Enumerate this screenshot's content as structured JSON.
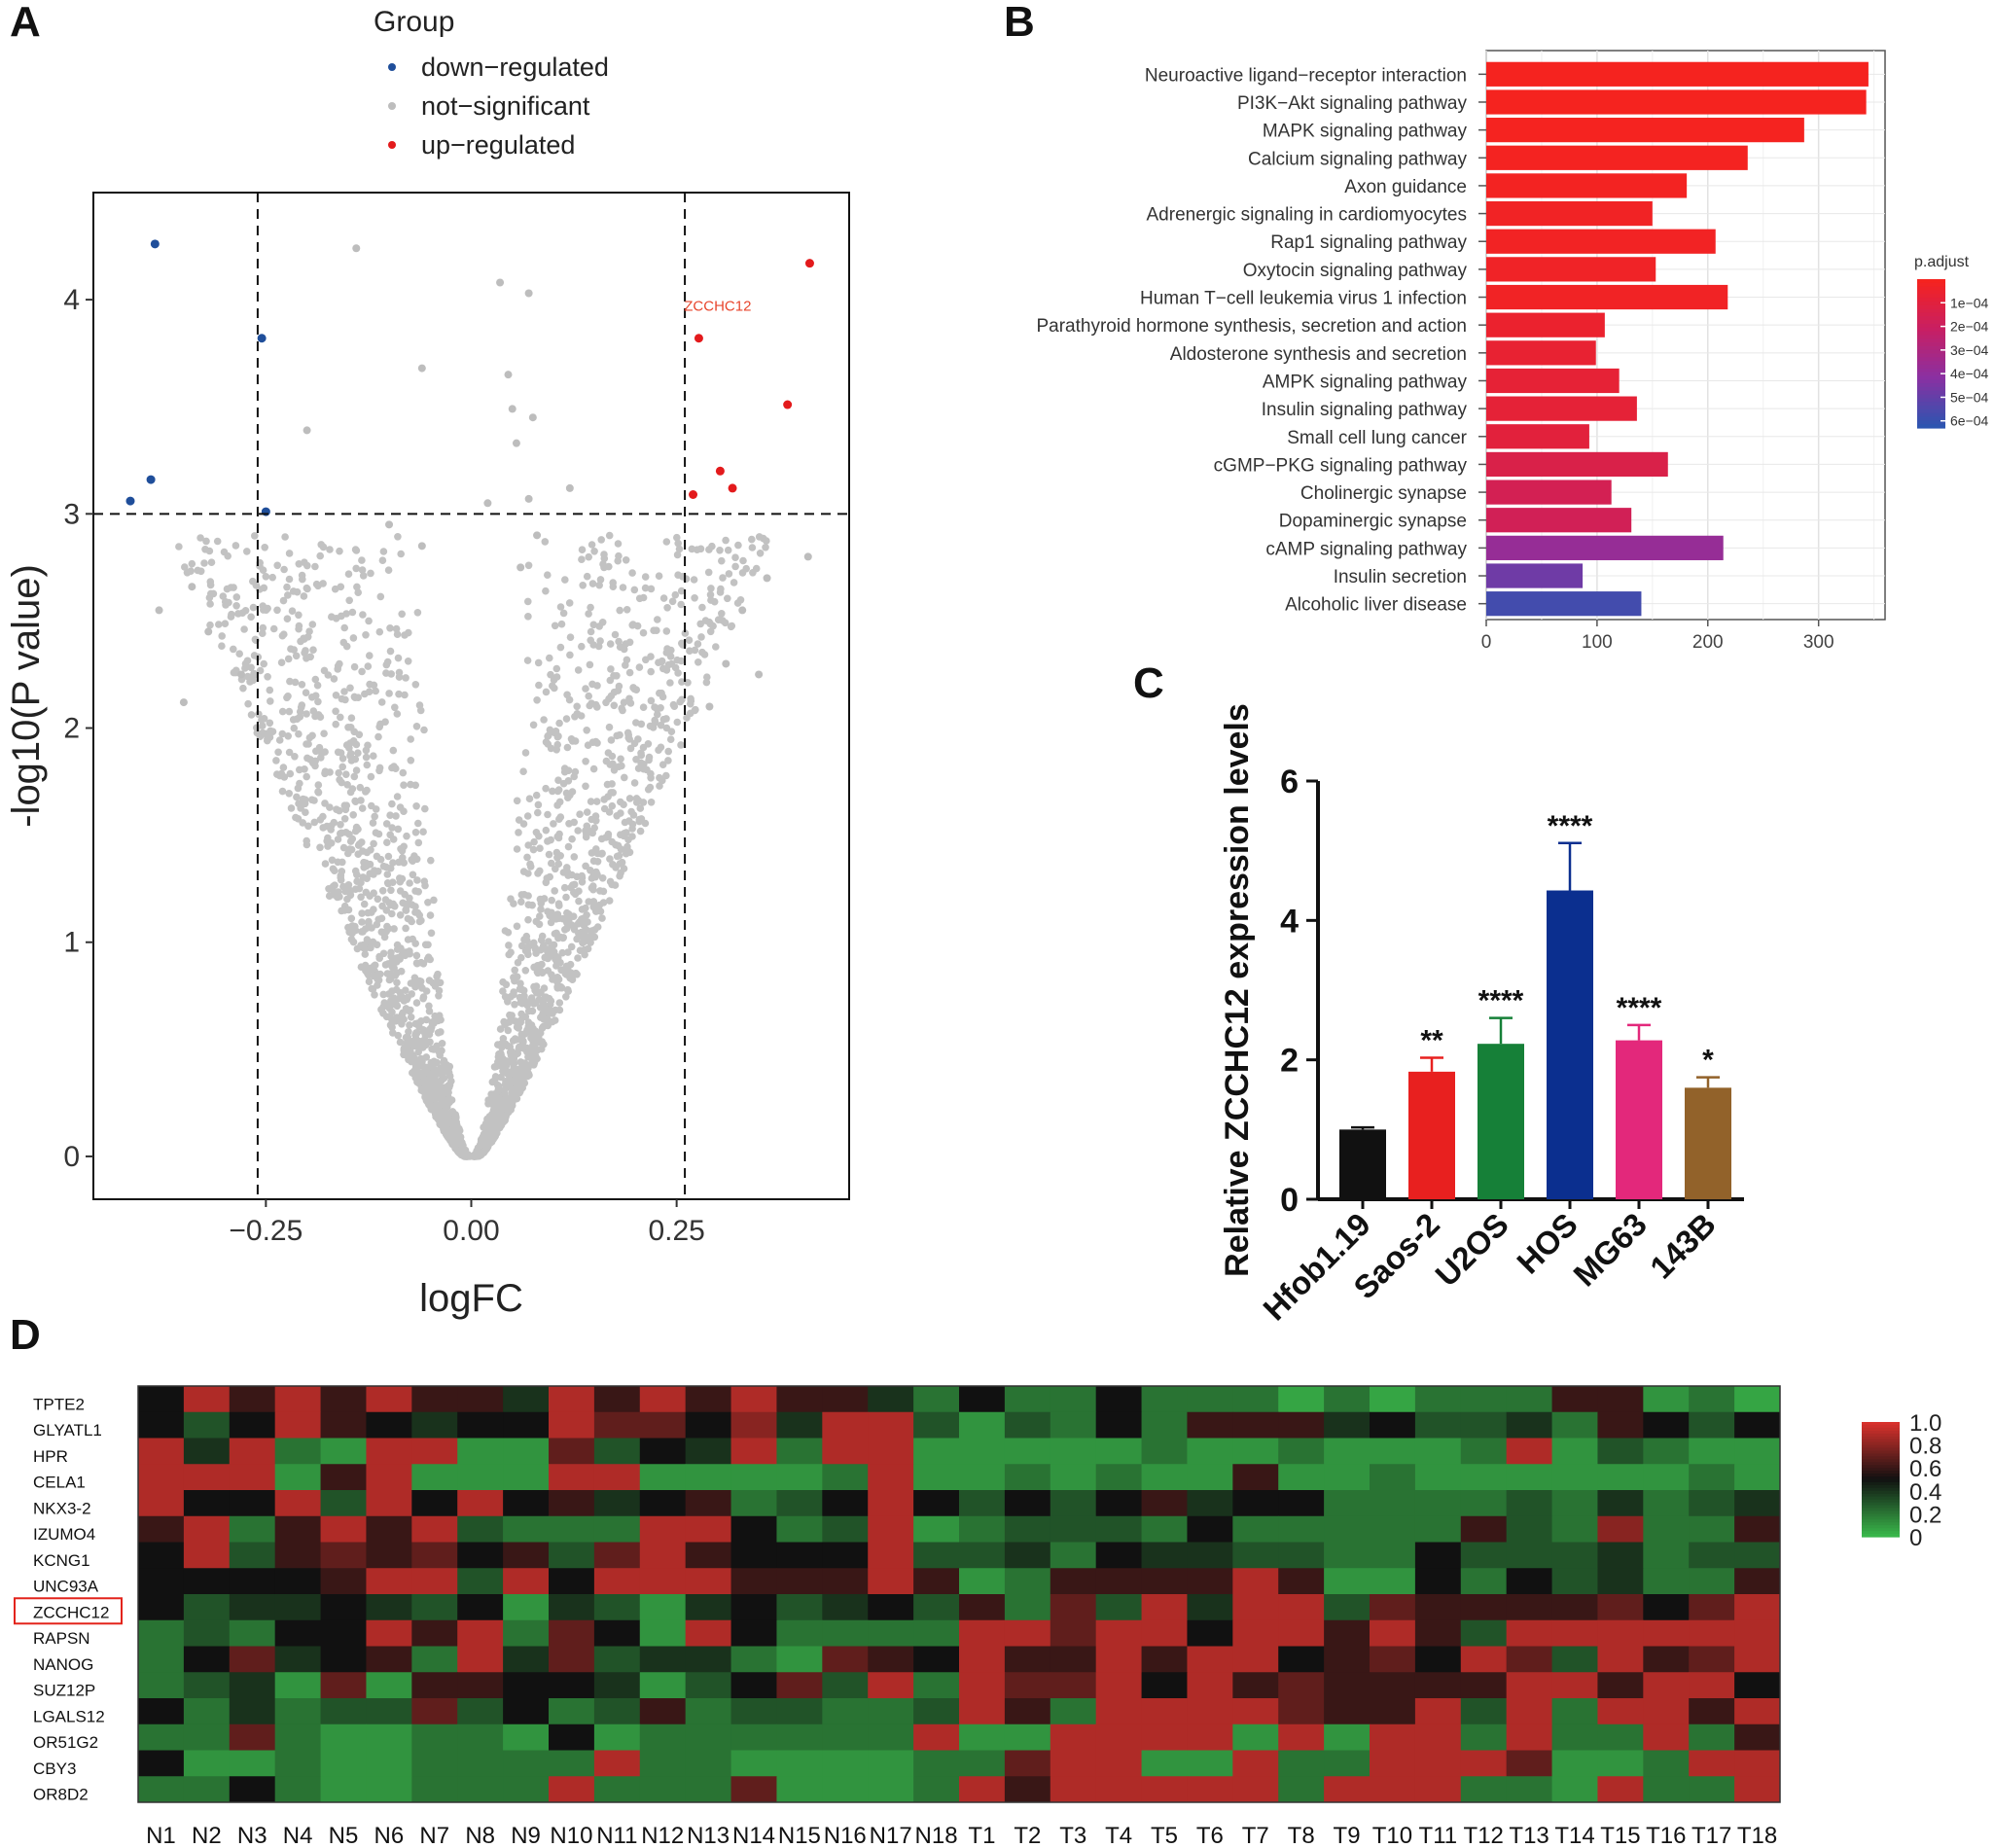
{
  "panels": {
    "a": "A",
    "b": "B",
    "c": "C",
    "d": "D"
  },
  "chart_data": [
    {
      "type": "scatter",
      "panel": "A",
      "title": "",
      "xlabel": "logFC",
      "ylabel": "-log10(P value)",
      "xlim": [
        -0.46,
        0.46
      ],
      "ylim": [
        -0.2,
        4.5
      ],
      "xticks": [
        -0.25,
        0.0,
        0.25
      ],
      "xtick_labels": [
        "−0.25",
        "0.00",
        "0.25"
      ],
      "yticks": [
        0,
        1,
        2,
        3,
        4
      ],
      "grid": false,
      "legend": {
        "title": "Group",
        "position": "top-left",
        "entries": [
          {
            "label": "down−regulated",
            "color": "#1f4e9a"
          },
          {
            "label": "not−significant",
            "color": "#bdbdbd"
          },
          {
            "label": "up−regulated",
            "color": "#e31a1c"
          }
        ]
      },
      "thresholds": {
        "logFC": [
          -0.26,
          0.26
        ],
        "neglog10p": 3.0
      },
      "annotations": [
        {
          "text": "ZCCHC12",
          "x": 0.3,
          "y": 3.92,
          "color": "#e8452c"
        }
      ],
      "series": [
        {
          "name": "down−regulated",
          "color": "#1f4e9a",
          "points": [
            [
              -0.385,
              4.26
            ],
            [
              -0.255,
              3.82
            ],
            [
              -0.39,
              3.16
            ],
            [
              -0.415,
              3.06
            ],
            [
              -0.25,
              3.01
            ]
          ]
        },
        {
          "name": "up−regulated",
          "color": "#e31a1c",
          "points": [
            [
              0.412,
              4.17
            ],
            [
              0.277,
              3.82
            ],
            [
              0.385,
              3.51
            ],
            [
              0.303,
              3.2
            ],
            [
              0.318,
              3.12
            ],
            [
              0.27,
              3.09
            ]
          ]
        },
        {
          "name": "not−significant",
          "color": "#bdbdbd",
          "points": [
            [
              -0.14,
              4.24
            ],
            [
              0.035,
              4.08
            ],
            [
              0.07,
              4.03
            ],
            [
              -0.06,
              3.68
            ],
            [
              0.045,
              3.65
            ],
            [
              -0.2,
              3.39
            ],
            [
              0.05,
              3.49
            ],
            [
              0.055,
              3.33
            ],
            [
              0.075,
              3.45
            ],
            [
              0.02,
              3.05
            ],
            [
              0.12,
              3.12
            ],
            [
              0.07,
              3.07
            ],
            [
              -0.38,
              2.55
            ],
            [
              -0.34,
              2.66
            ],
            [
              0.41,
              2.8
            ],
            [
              -0.32,
              2.45
            ],
            [
              0.36,
              2.7
            ],
            [
              0.33,
              2.55
            ],
            [
              -0.35,
              2.12
            ],
            [
              0.31,
              2.3
            ],
            [
              0.35,
              2.25
            ],
            [
              -0.28,
              2.25
            ],
            [
              0.29,
              2.1
            ],
            [
              -0.06,
              2.85
            ],
            [
              0.06,
              2.75
            ],
            [
              -0.1,
              2.95
            ],
            [
              0.08,
              2.9
            ]
          ]
        }
      ]
    },
    {
      "type": "bar",
      "panel": "B",
      "orientation": "horizontal",
      "title": "",
      "xlabel": "",
      "ylabel": "",
      "xlim": [
        0,
        360
      ],
      "xticks": [
        0,
        100,
        200,
        300
      ],
      "grid": true,
      "categories": [
        "Neuroactive ligand−receptor interaction",
        "PI3K−Akt signaling pathway",
        "MAPK signaling pathway",
        "Calcium signaling pathway",
        "Axon guidance",
        "Adrenergic signaling in cardiomyocytes",
        "Rap1 signaling pathway",
        "Oxytocin signaling pathway",
        "Human T−cell leukemia virus 1 infection",
        "Parathyroid hormone synthesis, secretion and action",
        "Aldosterone synthesis and secretion",
        "AMPK signaling pathway",
        "Insulin signaling pathway",
        "Small cell lung cancer",
        "cGMP−PKG signaling pathway",
        "Cholinergic synapse",
        "Dopaminergic synapse",
        "cAMP signaling pathway",
        "Insulin secretion",
        "Alcoholic liver disease"
      ],
      "values": [
        345,
        343,
        287,
        236,
        181,
        150,
        207,
        153,
        218,
        107,
        99,
        120,
        136,
        93,
        164,
        113,
        131,
        214,
        87,
        140
      ],
      "p_adjust": [
        1e-06,
        1e-06,
        2e-06,
        5e-06,
        1e-05,
        2e-05,
        1.5e-05,
        2.5e-05,
        1.8e-05,
        4.5e-05,
        6e-05,
        7e-05,
        7.5e-05,
        9e-05,
        0.00013,
        0.00016,
        0.00017,
        0.00038,
        0.00048,
        0.00058
      ],
      "colorbar": {
        "title": "p.adjust",
        "ticks": [
          0.0001,
          0.0002,
          0.0003,
          0.0004,
          0.0005,
          0.0006
        ],
        "tick_labels": [
          "1e−04",
          "2e−04",
          "3e−04",
          "4e−04",
          "5e−04",
          "6e−04"
        ],
        "range": [
          0,
          0.00063
        ],
        "colors": [
          "#f5231f",
          "#c81f63",
          "#8a30a2",
          "#2d55b0"
        ]
      }
    },
    {
      "type": "bar",
      "panel": "C",
      "title": "",
      "xlabel": "",
      "ylabel": "Relative ZCCHC12 expression levels",
      "ylim": [
        0,
        6
      ],
      "yticks": [
        0,
        2,
        4,
        6
      ],
      "grid": false,
      "categories": [
        "Hfob1.19",
        "Saos-2",
        "U2OS",
        "HOS",
        "MG63",
        "143B"
      ],
      "values": [
        1.0,
        1.83,
        2.23,
        4.43,
        2.28,
        1.6
      ],
      "errors": [
        0.03,
        0.2,
        0.37,
        0.68,
        0.22,
        0.15
      ],
      "significance": [
        "",
        "**",
        "****",
        "****",
        "****",
        "*"
      ],
      "colors": [
        "#111111",
        "#e8201f",
        "#168038",
        "#0b2f8f",
        "#e3287b",
        "#92622a"
      ]
    },
    {
      "type": "heatmap",
      "panel": "D",
      "title": "",
      "xlabel": "",
      "ylabel": "",
      "rows": [
        "TPTE2",
        "GLYATL1",
        "HPR",
        "CELA1",
        "NKX3-2",
        "IZUMO4",
        "KCNG1",
        "UNC93A",
        "ZCCHC12",
        "RAPSN",
        "NANOG",
        "SUZ12P",
        "LGALS12",
        "OR51G2",
        "CBY3",
        "OR8D2"
      ],
      "highlighted_row": "ZCCHC12",
      "columns": [
        "N1",
        "N2",
        "N3",
        "N4",
        "N5",
        "N6",
        "N7",
        "N8",
        "N9",
        "N10",
        "N11",
        "N12",
        "N13",
        "N14",
        "N15",
        "N16",
        "N17",
        "N18",
        "T1",
        "T2",
        "T3",
        "T4",
        "T5",
        "T6",
        "T7",
        "T8",
        "T9",
        "T10",
        "T11",
        "T12",
        "T13",
        "T14",
        "T15",
        "T16",
        "T17",
        "T18"
      ],
      "colorbar": {
        "ticks": [
          0,
          0.2,
          0.4,
          0.6,
          0.8,
          1.0
        ],
        "tick_labels": [
          "0",
          "0.2",
          "0.4",
          "0.6",
          "0.8",
          "1.0"
        ],
        "low": "#39b54a",
        "mid": "#111111",
        "high": "#d7312c"
      },
      "values": [
        [
          0.5,
          0.9,
          0.6,
          0.9,
          0.6,
          0.9,
          0.6,
          0.6,
          0.4,
          0.9,
          0.6,
          0.9,
          0.6,
          0.9,
          0.6,
          0.6,
          0.4,
          0.2,
          0.5,
          0.2,
          0.2,
          0.5,
          0.2,
          0.2,
          0.2,
          0.05,
          0.2,
          0.05,
          0.2,
          0.2,
          0.2,
          0.6,
          0.6,
          0.1,
          0.2,
          0.05
        ],
        [
          0.5,
          0.3,
          0.5,
          0.9,
          0.6,
          0.5,
          0.4,
          0.5,
          0.5,
          0.9,
          0.7,
          0.7,
          0.5,
          0.8,
          0.4,
          0.9,
          0.9,
          0.3,
          0.1,
          0.3,
          0.2,
          0.5,
          0.2,
          0.6,
          0.6,
          0.6,
          0.4,
          0.5,
          0.3,
          0.3,
          0.4,
          0.2,
          0.6,
          0.5,
          0.3,
          0.5
        ],
        [
          0.9,
          0.4,
          0.9,
          0.2,
          0.1,
          0.9,
          0.9,
          0.1,
          0.1,
          0.7,
          0.3,
          0.5,
          0.4,
          0.9,
          0.2,
          0.9,
          0.9,
          0.1,
          0.1,
          0.1,
          0.1,
          0.1,
          0.2,
          0.1,
          0.1,
          0.2,
          0.1,
          0.1,
          0.1,
          0.2,
          0.9,
          0.1,
          0.3,
          0.2,
          0.1,
          0.1
        ],
        [
          0.9,
          0.9,
          0.9,
          0.1,
          0.6,
          0.9,
          0.1,
          0.1,
          0.1,
          0.9,
          0.9,
          0.1,
          0.1,
          0.1,
          0.1,
          0.2,
          0.9,
          0.1,
          0.1,
          0.2,
          0.1,
          0.2,
          0.1,
          0.1,
          0.6,
          0.1,
          0.1,
          0.2,
          0.1,
          0.1,
          0.1,
          0.1,
          0.1,
          0.1,
          0.2,
          0.1
        ],
        [
          0.9,
          0.5,
          0.5,
          0.9,
          0.3,
          0.9,
          0.5,
          0.9,
          0.5,
          0.6,
          0.4,
          0.5,
          0.6,
          0.2,
          0.3,
          0.5,
          0.9,
          0.5,
          0.3,
          0.5,
          0.3,
          0.5,
          0.6,
          0.4,
          0.5,
          0.5,
          0.2,
          0.2,
          0.2,
          0.2,
          0.3,
          0.2,
          0.4,
          0.2,
          0.3,
          0.4
        ],
        [
          0.6,
          0.9,
          0.2,
          0.6,
          0.9,
          0.6,
          0.9,
          0.3,
          0.2,
          0.2,
          0.2,
          0.9,
          0.9,
          0.5,
          0.2,
          0.3,
          0.9,
          0.1,
          0.2,
          0.3,
          0.3,
          0.3,
          0.2,
          0.5,
          0.2,
          0.2,
          0.2,
          0.2,
          0.2,
          0.6,
          0.3,
          0.2,
          0.8,
          0.2,
          0.2,
          0.6
        ],
        [
          0.5,
          0.9,
          0.3,
          0.6,
          0.7,
          0.6,
          0.7,
          0.5,
          0.6,
          0.3,
          0.7,
          0.9,
          0.6,
          0.5,
          0.5,
          0.5,
          0.9,
          0.3,
          0.3,
          0.4,
          0.2,
          0.5,
          0.4,
          0.4,
          0.3,
          0.3,
          0.2,
          0.2,
          0.5,
          0.3,
          0.3,
          0.3,
          0.4,
          0.2,
          0.3,
          0.3
        ],
        [
          0.5,
          0.5,
          0.5,
          0.5,
          0.6,
          0.9,
          0.9,
          0.3,
          0.9,
          0.5,
          0.9,
          0.9,
          0.9,
          0.6,
          0.6,
          0.6,
          0.9,
          0.6,
          0.1,
          0.2,
          0.6,
          0.6,
          0.6,
          0.6,
          0.9,
          0.6,
          0.1,
          0.1,
          0.5,
          0.2,
          0.5,
          0.3,
          0.4,
          0.2,
          0.2,
          0.6
        ],
        [
          0.5,
          0.3,
          0.4,
          0.4,
          0.5,
          0.4,
          0.3,
          0.5,
          0.1,
          0.4,
          0.3,
          0.1,
          0.4,
          0.5,
          0.3,
          0.4,
          0.5,
          0.3,
          0.6,
          0.2,
          0.7,
          0.3,
          0.9,
          0.4,
          0.9,
          0.9,
          0.3,
          0.7,
          0.6,
          0.6,
          0.6,
          0.6,
          0.7,
          0.5,
          0.7,
          0.9
        ],
        [
          0.2,
          0.3,
          0.2,
          0.5,
          0.5,
          0.9,
          0.6,
          0.9,
          0.2,
          0.7,
          0.5,
          0.1,
          0.9,
          0.5,
          0.2,
          0.2,
          0.2,
          0.2,
          0.9,
          0.9,
          0.7,
          0.9,
          0.9,
          0.5,
          0.9,
          0.9,
          0.6,
          0.9,
          0.6,
          0.3,
          0.9,
          0.9,
          0.9,
          0.9,
          0.9,
          0.9
        ],
        [
          0.2,
          0.5,
          0.7,
          0.4,
          0.5,
          0.6,
          0.2,
          0.9,
          0.4,
          0.7,
          0.3,
          0.4,
          0.4,
          0.2,
          0.1,
          0.7,
          0.6,
          0.5,
          0.9,
          0.6,
          0.6,
          0.9,
          0.6,
          0.9,
          0.9,
          0.5,
          0.6,
          0.7,
          0.5,
          0.9,
          0.7,
          0.3,
          0.9,
          0.6,
          0.7,
          0.9
        ],
        [
          0.2,
          0.3,
          0.4,
          0.1,
          0.7,
          0.1,
          0.6,
          0.6,
          0.5,
          0.5,
          0.4,
          0.1,
          0.3,
          0.5,
          0.7,
          0.3,
          0.9,
          0.2,
          0.9,
          0.7,
          0.7,
          0.9,
          0.5,
          0.9,
          0.6,
          0.7,
          0.6,
          0.6,
          0.6,
          0.6,
          0.9,
          0.9,
          0.6,
          0.9,
          0.9,
          0.5
        ],
        [
          0.5,
          0.2,
          0.4,
          0.2,
          0.3,
          0.3,
          0.7,
          0.3,
          0.5,
          0.2,
          0.3,
          0.6,
          0.2,
          0.3,
          0.3,
          0.2,
          0.2,
          0.3,
          0.9,
          0.6,
          0.2,
          0.9,
          0.9,
          0.9,
          0.9,
          0.7,
          0.6,
          0.6,
          0.9,
          0.3,
          0.9,
          0.2,
          0.9,
          0.9,
          0.6,
          0.9
        ],
        [
          0.2,
          0.2,
          0.7,
          0.2,
          0.1,
          0.1,
          0.2,
          0.2,
          0.1,
          0.5,
          0.1,
          0.2,
          0.2,
          0.2,
          0.2,
          0.2,
          0.2,
          0.9,
          0.1,
          0.1,
          0.9,
          0.9,
          0.9,
          0.9,
          0.1,
          0.9,
          0.1,
          0.9,
          0.9,
          0.2,
          0.9,
          0.2,
          0.2,
          0.9,
          0.2,
          0.6
        ],
        [
          0.5,
          0.1,
          0.1,
          0.2,
          0.1,
          0.1,
          0.2,
          0.2,
          0.2,
          0.2,
          0.9,
          0.2,
          0.2,
          0.1,
          0.1,
          0.1,
          0.1,
          0.2,
          0.2,
          0.7,
          0.9,
          0.9,
          0.1,
          0.1,
          0.9,
          0.2,
          0.2,
          0.9,
          0.9,
          0.9,
          0.7,
          0.1,
          0.1,
          0.2,
          0.9,
          0.9
        ],
        [
          0.2,
          0.2,
          0.5,
          0.2,
          0.1,
          0.1,
          0.2,
          0.2,
          0.2,
          0.9,
          0.2,
          0.2,
          0.2,
          0.7,
          0.1,
          0.1,
          0.1,
          0.2,
          0.9,
          0.6,
          0.9,
          0.9,
          0.9,
          0.9,
          0.9,
          0.2,
          0.9,
          0.9,
          0.9,
          0.2,
          0.2,
          0.1,
          0.9,
          0.2,
          0.2,
          0.9
        ]
      ]
    }
  ]
}
